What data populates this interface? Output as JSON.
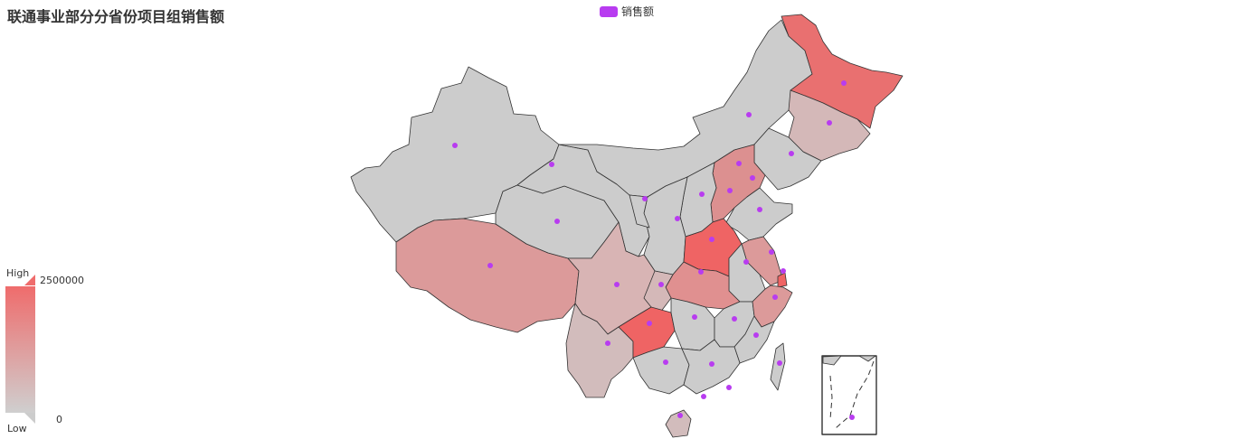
{
  "title": "联通事业部分分省份项目组销售额",
  "legend": {
    "label": "销售额",
    "color": "#b83cf0"
  },
  "visual_map": {
    "high_label": "High",
    "low_label": "Low",
    "max": "2500000",
    "min": "0",
    "high_color": "#ef6c6c",
    "low_color": "#cccccc"
  },
  "chart_data": {
    "type": "choropleth-map",
    "series": [
      {
        "name": "销售额"
      }
    ],
    "min": 0,
    "max": 2500000,
    "provinces": [
      {
        "name": "黑龙江",
        "level": "high"
      },
      {
        "name": "河南",
        "level": "high"
      },
      {
        "name": "贵州",
        "level": "high"
      },
      {
        "name": "上海",
        "level": "high"
      },
      {
        "name": "河北",
        "level": "medium-high"
      },
      {
        "name": "湖北",
        "level": "medium-high"
      },
      {
        "name": "西藏",
        "level": "medium"
      },
      {
        "name": "江苏",
        "level": "medium"
      },
      {
        "name": "浙江",
        "level": "medium"
      },
      {
        "name": "四川",
        "level": "medium-low"
      },
      {
        "name": "吉林",
        "level": "medium-low"
      },
      {
        "name": "云南",
        "level": "low"
      },
      {
        "name": "海南",
        "level": "low"
      }
    ]
  }
}
